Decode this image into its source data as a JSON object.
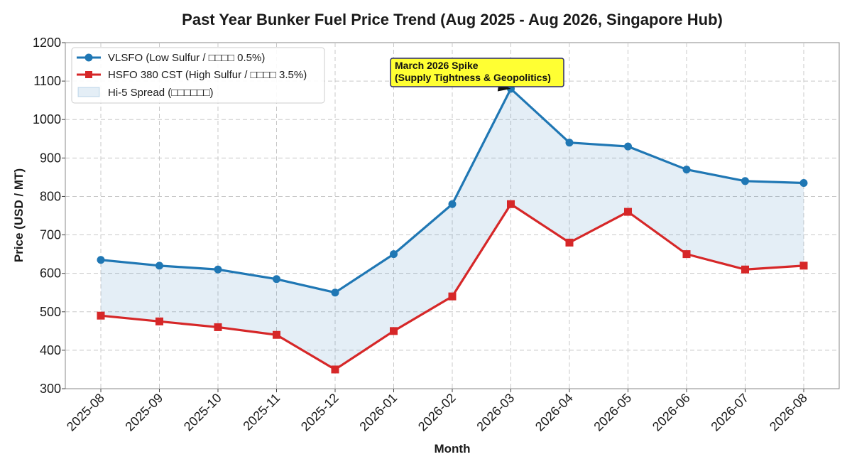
{
  "chart_data": {
    "type": "line",
    "title": "Past Year Bunker Fuel Price Trend (Aug 2025 - Aug 2026, Singapore Hub)",
    "xlabel": "Month",
    "ylabel": "Price (USD / MT)",
    "categories": [
      "2025-08",
      "2025-09",
      "2025-10",
      "2025-11",
      "2025-12",
      "2026-01",
      "2026-02",
      "2026-03",
      "2026-04",
      "2026-05",
      "2026-06",
      "2026-07",
      "2026-08"
    ],
    "ylim": [
      300,
      1200
    ],
    "yticks": [
      300,
      400,
      500,
      600,
      700,
      800,
      900,
      1000,
      1100,
      1200
    ],
    "grid": true,
    "legend_position": "top-left",
    "series": [
      {
        "name": "VLSFO (Low Sulfur / □□□□ 0.5%)",
        "color": "#1f77b4",
        "marker": "circle",
        "values": [
          635,
          620,
          610,
          585,
          550,
          650,
          780,
          1080,
          940,
          930,
          870,
          840,
          835
        ]
      },
      {
        "name": "HSFO 380 CST (High Sulfur / □□□□ 3.5%)",
        "color": "#d62728",
        "marker": "square",
        "values": [
          490,
          475,
          460,
          440,
          350,
          450,
          540,
          780,
          680,
          760,
          650,
          610,
          620
        ]
      }
    ],
    "fill": {
      "name": "Hi-5 Spread (□□□□□□)",
      "color": "#1f77b4",
      "opacity": 0.12
    },
    "annotation": {
      "text_lines": [
        "March 2026 Spike",
        "(Supply Tightness & Geopolitics)"
      ],
      "x": "2026-03",
      "y": 1080,
      "box_color": "#ffff33",
      "border_color": "#2b2b6b"
    }
  }
}
